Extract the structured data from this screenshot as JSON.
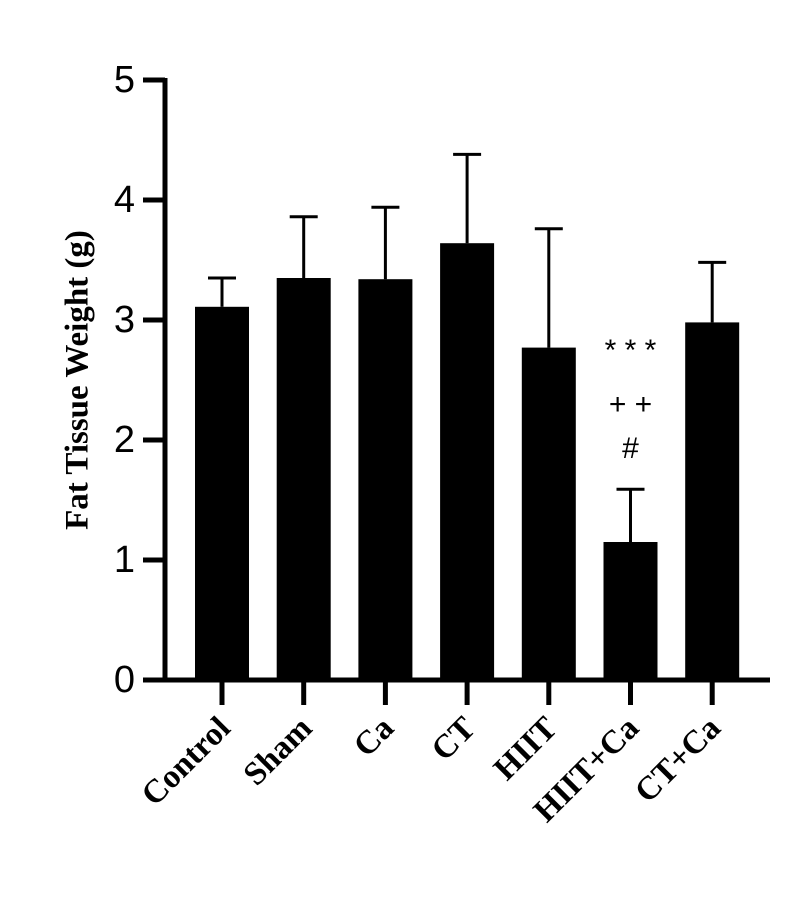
{
  "chart_data": {
    "type": "bar",
    "title": "",
    "xlabel": "",
    "ylabel": "Fat Tissue Weight (g)",
    "ylim": [
      0,
      5
    ],
    "yticks": [
      "0",
      "1",
      "2",
      "3",
      "4",
      "5"
    ],
    "categories": [
      "Control",
      "Sham",
      "Ca",
      "CT",
      "HIIT",
      "HIIT+Ca",
      "CT+Ca"
    ],
    "values": [
      3.11,
      3.35,
      3.34,
      3.64,
      2.77,
      1.15,
      2.98
    ],
    "error_upper": [
      0.24,
      0.51,
      0.6,
      0.74,
      0.99,
      0.44,
      0.5
    ],
    "bar_color": "#000000",
    "grid": false,
    "annotations": [
      {
        "category": "HIIT+Ca",
        "lines": [
          "* * *",
          "+ +",
          "#"
        ]
      }
    ]
  }
}
